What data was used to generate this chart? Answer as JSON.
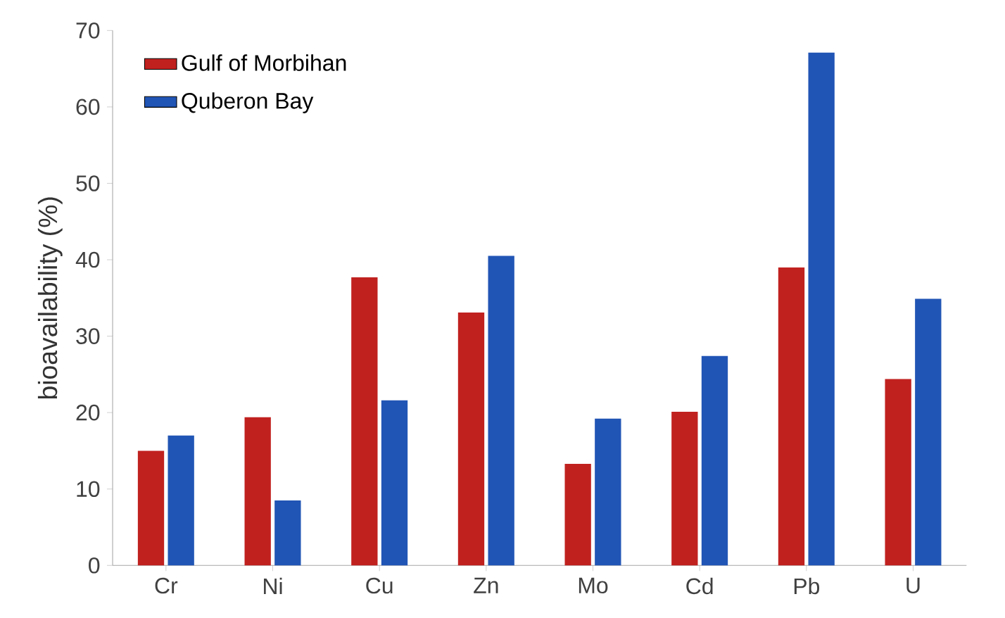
{
  "chart_data": {
    "type": "bar",
    "ylabel": "bioavailability (%)",
    "categories": [
      "Cr",
      "Ni",
      "Cu",
      "Zn",
      "Mo",
      "Cd",
      "Pb",
      "U"
    ],
    "series": [
      {
        "name": "Gulf of Morbihan",
        "color": "#c0211f",
        "values": [
          15.0,
          19.4,
          37.7,
          33.1,
          13.3,
          20.1,
          39.0,
          24.4
        ]
      },
      {
        "name": "Quberon Bay",
        "color": "#2155b5",
        "values": [
          17.0,
          8.5,
          21.6,
          40.5,
          19.2,
          27.4,
          67.1,
          34.9
        ]
      }
    ],
    "ylim": [
      0,
      70
    ],
    "yticks": [
      0,
      10,
      20,
      30,
      40,
      50,
      60,
      70
    ],
    "legend": "top left"
  }
}
